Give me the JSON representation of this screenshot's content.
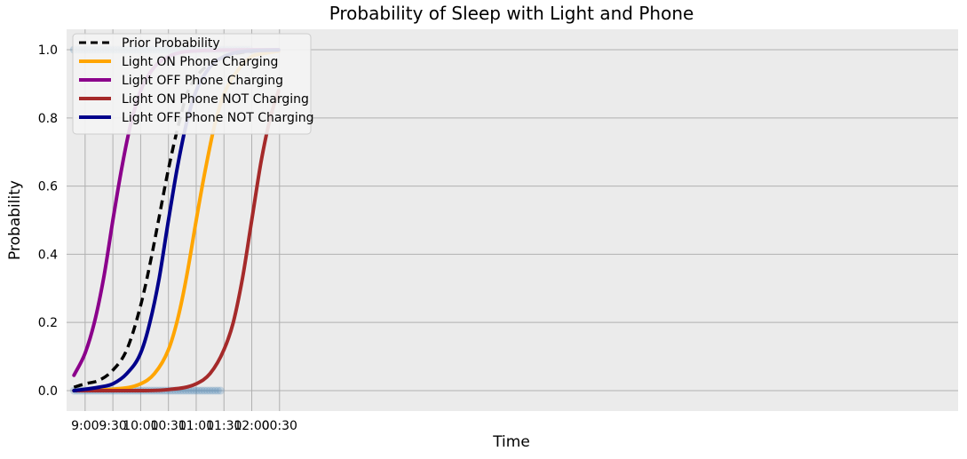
{
  "chart_data": {
    "type": "line",
    "title": "Probability of Sleep with Light and Phone",
    "xlabel": "Time",
    "ylabel": "Probability",
    "x_ticks": [
      "9:00",
      "9:30",
      "10:00",
      "10:30",
      "11:00",
      "11:30",
      "12:00",
      "00:30"
    ],
    "y_ticks": [
      "0.0",
      "0.2",
      "0.4",
      "0.6",
      "0.8",
      "1.0"
    ],
    "xlim": [
      "08:40",
      "00:43"
    ],
    "ylim": [
      -0.06,
      1.06
    ],
    "grid": true,
    "legend_position": "upper-left",
    "background": "#ebebeb",
    "series": [
      {
        "name": "Prior Probability",
        "color": "#000000",
        "dash": true,
        "x": [
          "08:48",
          "09:00",
          "09:15",
          "09:30",
          "09:45",
          "10:00",
          "10:10",
          "10:20",
          "10:30",
          "10:40",
          "10:50",
          "11:00",
          "11:15",
          "11:30",
          "11:45",
          "12:00",
          "12:15",
          "12:29"
        ],
        "y": [
          0.01,
          0.02,
          0.03,
          0.06,
          0.12,
          0.25,
          0.37,
          0.51,
          0.65,
          0.77,
          0.87,
          0.92,
          0.96,
          0.98,
          0.99,
          0.995,
          0.998,
          0.999
        ]
      },
      {
        "name": "Light ON Phone Charging",
        "color": "#ffa500",
        "dash": false,
        "x": [
          "08:48",
          "09:30",
          "10:00",
          "10:15",
          "10:30",
          "10:40",
          "10:50",
          "11:00",
          "11:10",
          "11:20",
          "11:30",
          "11:45",
          "12:00",
          "12:15",
          "12:29"
        ],
        "y": [
          0.0,
          0.004,
          0.02,
          0.05,
          0.12,
          0.21,
          0.34,
          0.5,
          0.65,
          0.78,
          0.87,
          0.94,
          0.98,
          0.99,
          0.996
        ]
      },
      {
        "name": "Light OFF Phone Charging",
        "color": "#8b008b",
        "dash": false,
        "x": [
          "08:48",
          "09:00",
          "09:10",
          "09:20",
          "09:30",
          "09:40",
          "09:50",
          "10:00",
          "10:15",
          "10:30",
          "10:45",
          "11:00",
          "11:30",
          "12:29"
        ],
        "y": [
          0.045,
          0.11,
          0.2,
          0.33,
          0.5,
          0.66,
          0.79,
          0.88,
          0.95,
          0.98,
          0.993,
          0.997,
          0.999,
          1.0
        ]
      },
      {
        "name": "Light ON Phone NOT Charging",
        "color": "#a52a2a",
        "dash": false,
        "x": [
          "08:48",
          "10:00",
          "10:30",
          "11:00",
          "11:15",
          "11:30",
          "11:40",
          "11:50",
          "12:00",
          "12:10",
          "12:20",
          "12:29"
        ],
        "y": [
          0.0,
          0.0,
          0.003,
          0.02,
          0.05,
          0.12,
          0.2,
          0.33,
          0.5,
          0.67,
          0.8,
          0.88
        ]
      },
      {
        "name": "Light OFF Phone NOT Charging",
        "color": "#00008b",
        "dash": false,
        "x": [
          "08:48",
          "09:15",
          "09:30",
          "09:45",
          "10:00",
          "10:10",
          "10:20",
          "10:30",
          "10:40",
          "10:50",
          "11:00",
          "11:15",
          "11:30",
          "11:45",
          "12:00",
          "12:29"
        ],
        "y": [
          0.0,
          0.01,
          0.02,
          0.05,
          0.11,
          0.2,
          0.33,
          0.5,
          0.66,
          0.79,
          0.88,
          0.95,
          0.98,
          0.993,
          0.997,
          0.999
        ]
      }
    ],
    "observations": {
      "color": "#4682b4",
      "opacity": 0.25,
      "awake": {
        "y": 0,
        "start": "08:48",
        "end": "11:27"
      },
      "asleep": {
        "y": 1,
        "start": "08:48",
        "end": "11:59"
      }
    }
  }
}
